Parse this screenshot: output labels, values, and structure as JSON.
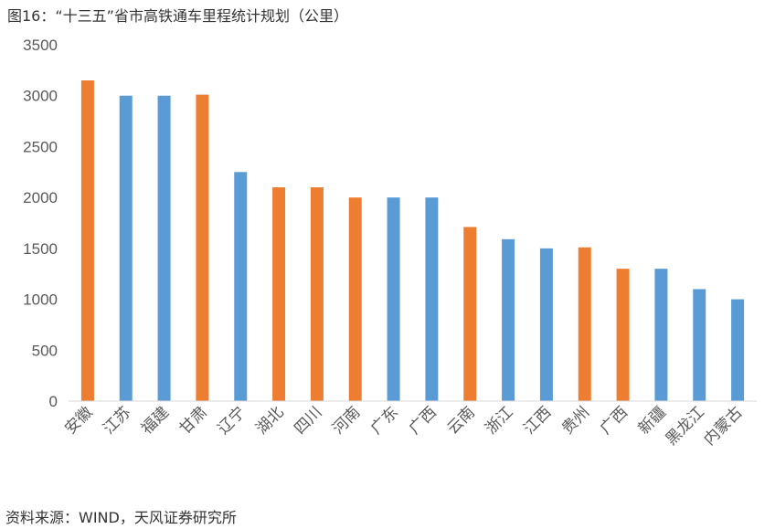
{
  "title": "图16：“十三五”省市高铁通车里程统计规划（公里）",
  "source": "资料来源：WIND，天风证券研究所",
  "colors": {
    "orange": "#ed7d31",
    "blue": "#5b9bd5",
    "axis": "#d9d9d9"
  },
  "chart_data": {
    "type": "bar",
    "ylim": [
      0,
      3500
    ],
    "yticks": [
      0,
      500,
      1000,
      1500,
      2000,
      2500,
      3000,
      3500
    ],
    "grid": false,
    "categories": [
      "安徽",
      "江苏",
      "福建",
      "甘肃",
      "辽宁",
      "湖北",
      "四川",
      "河南",
      "广东",
      "广西",
      "云南",
      "浙江",
      "江西",
      "贵州",
      "广西",
      "新疆",
      "黑龙江",
      "内蒙古"
    ],
    "values": [
      3150,
      3000,
      3000,
      3010,
      2250,
      2100,
      2100,
      2000,
      2000,
      2000,
      1710,
      1590,
      1500,
      1510,
      1300,
      1300,
      1100,
      1000
    ],
    "bar_colors": [
      "orange",
      "blue",
      "blue",
      "orange",
      "blue",
      "orange",
      "orange",
      "orange",
      "blue",
      "blue",
      "orange",
      "blue",
      "blue",
      "orange",
      "orange",
      "blue",
      "blue",
      "blue"
    ]
  }
}
